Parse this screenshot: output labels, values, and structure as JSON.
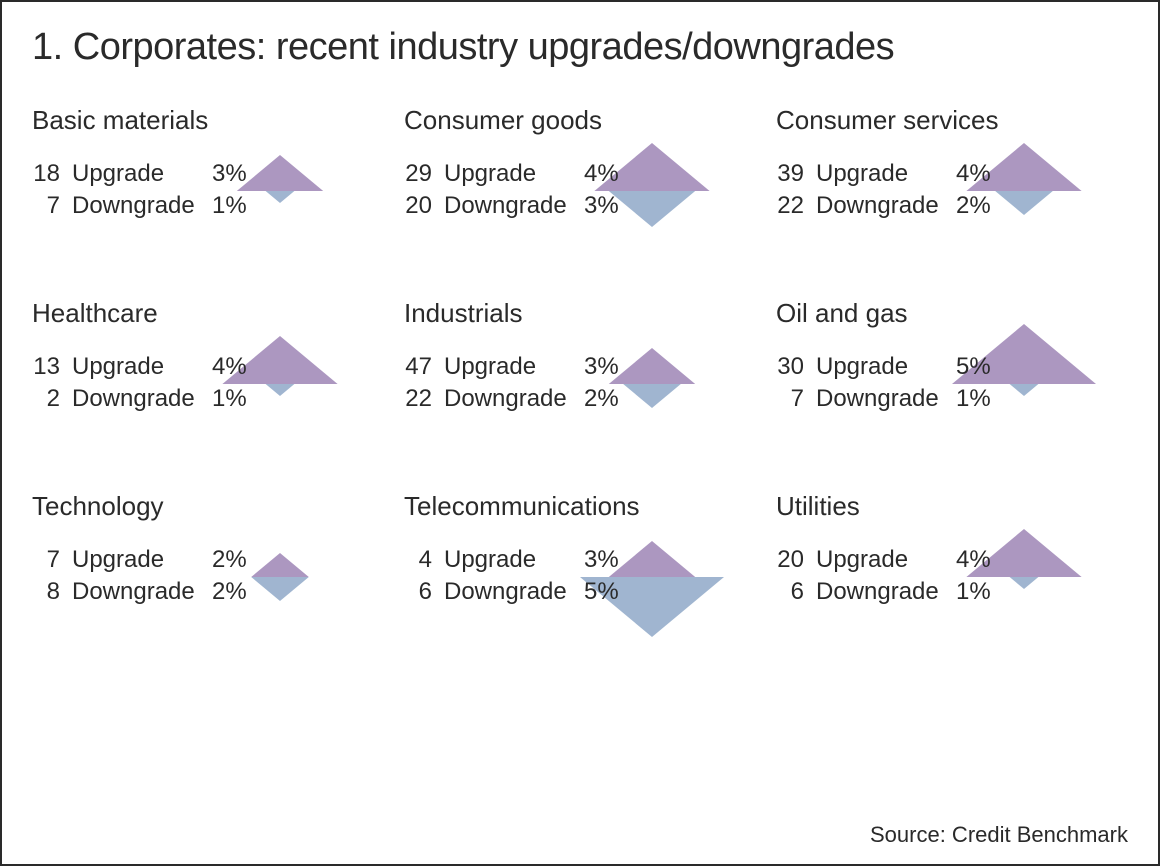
{
  "title": "1. Corporates: recent industry upgrades/downgrades",
  "source": "Source: Credit Benchmark",
  "labels": {
    "upgrade": "Upgrade",
    "downgrade": "Downgrade"
  },
  "style": {
    "upgrade_color": "#9d85b5",
    "downgrade_color": "#8fa8c8",
    "text_color": "#2a2a2a",
    "border_color": "#2a2a2a",
    "background": "#ffffff",
    "title_fontsize": 38,
    "sector_fontsize": 26,
    "row_fontsize": 24,
    "source_fontsize": 22,
    "diamond_max_half_width": 72,
    "diamond_pct_per_unit": 1,
    "diamond_height_per_pct": 12
  },
  "sectors": [
    {
      "name": "Basic materials",
      "upgrade_count": 18,
      "upgrade_pct": 3,
      "downgrade_count": 7,
      "downgrade_pct": 1
    },
    {
      "name": "Consumer goods",
      "upgrade_count": 29,
      "upgrade_pct": 4,
      "downgrade_count": 20,
      "downgrade_pct": 3
    },
    {
      "name": "Consumer services",
      "upgrade_count": 39,
      "upgrade_pct": 4,
      "downgrade_count": 22,
      "downgrade_pct": 2
    },
    {
      "name": "Healthcare",
      "upgrade_count": 13,
      "upgrade_pct": 4,
      "downgrade_count": 2,
      "downgrade_pct": 1
    },
    {
      "name": "Industrials",
      "upgrade_count": 47,
      "upgrade_pct": 3,
      "downgrade_count": 22,
      "downgrade_pct": 2
    },
    {
      "name": "Oil and gas",
      "upgrade_count": 30,
      "upgrade_pct": 5,
      "downgrade_count": 7,
      "downgrade_pct": 1
    },
    {
      "name": "Technology",
      "upgrade_count": 7,
      "upgrade_pct": 2,
      "downgrade_count": 8,
      "downgrade_pct": 2
    },
    {
      "name": "Telecommunications",
      "upgrade_count": 4,
      "upgrade_pct": 3,
      "downgrade_count": 6,
      "downgrade_pct": 5
    },
    {
      "name": "Utilities",
      "upgrade_count": 20,
      "upgrade_pct": 4,
      "downgrade_count": 6,
      "downgrade_pct": 1
    }
  ]
}
